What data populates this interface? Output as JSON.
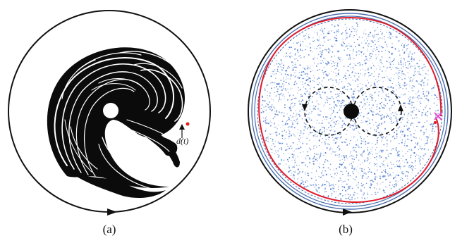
{
  "panels": [
    {
      "caption": "(a)",
      "annotation_label": "d(t)",
      "description_color_outer": "#111111",
      "tracer_color": "#111111",
      "marker_color": "#e02020"
    },
    {
      "caption": "(b)",
      "boundary_color": "#111111",
      "inner_ring_color": "#4a6fb0",
      "red_curve_color": "#e01a2a",
      "scatter_color": "#3a6bc8",
      "marker_color": "#e24fd2"
    }
  ]
}
